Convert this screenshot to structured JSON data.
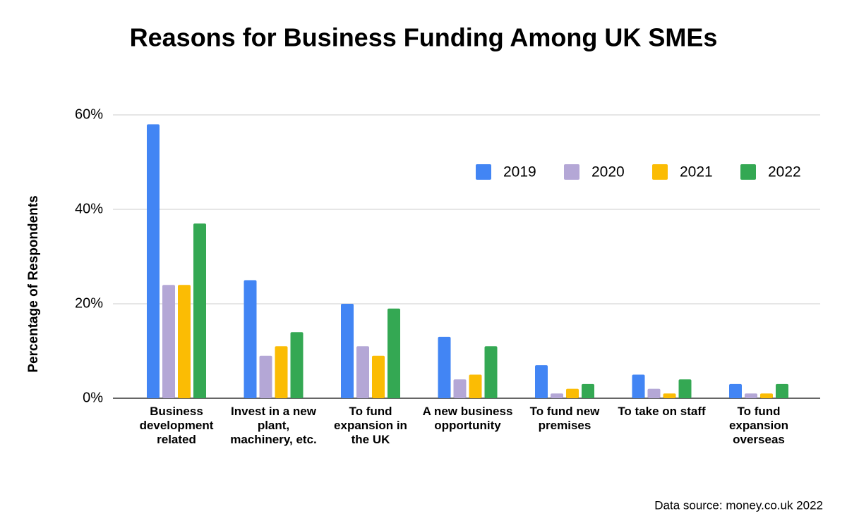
{
  "chart_data": {
    "type": "bar",
    "title": "Reasons for Business Funding Among UK SMEs",
    "y_label": "Percentage of Respondents",
    "source": "Data source: money.co.uk 2022",
    "categories": [
      "Business development related",
      "Invest in a new plant, machinery, etc.",
      "To fund expansion in the UK",
      "A new business opportunity",
      "To fund new premises",
      "To take on staff",
      "To fund expansion overseas"
    ],
    "series": [
      {
        "name": "2019",
        "color": "#4285f4",
        "values": [
          58,
          25,
          20,
          13,
          7,
          5,
          3
        ]
      },
      {
        "name": "2020",
        "color": "#b4a7d6",
        "values": [
          24,
          9,
          11,
          4,
          1,
          2,
          1
        ]
      },
      {
        "name": "2021",
        "color": "#fbbc04",
        "values": [
          24,
          11,
          9,
          5,
          2,
          1,
          1
        ]
      },
      {
        "name": "2022",
        "color": "#34a853",
        "values": [
          37,
          14,
          19,
          11,
          3,
          4,
          3
        ]
      }
    ],
    "ylim": [
      0,
      60
    ],
    "yticks": [
      {
        "value": 0,
        "label": "0%"
      },
      {
        "value": 20,
        "label": "20%"
      },
      {
        "value": 40,
        "label": "40%"
      },
      {
        "value": 60,
        "label": "60%"
      }
    ],
    "grid": true,
    "legend": "top-right"
  }
}
